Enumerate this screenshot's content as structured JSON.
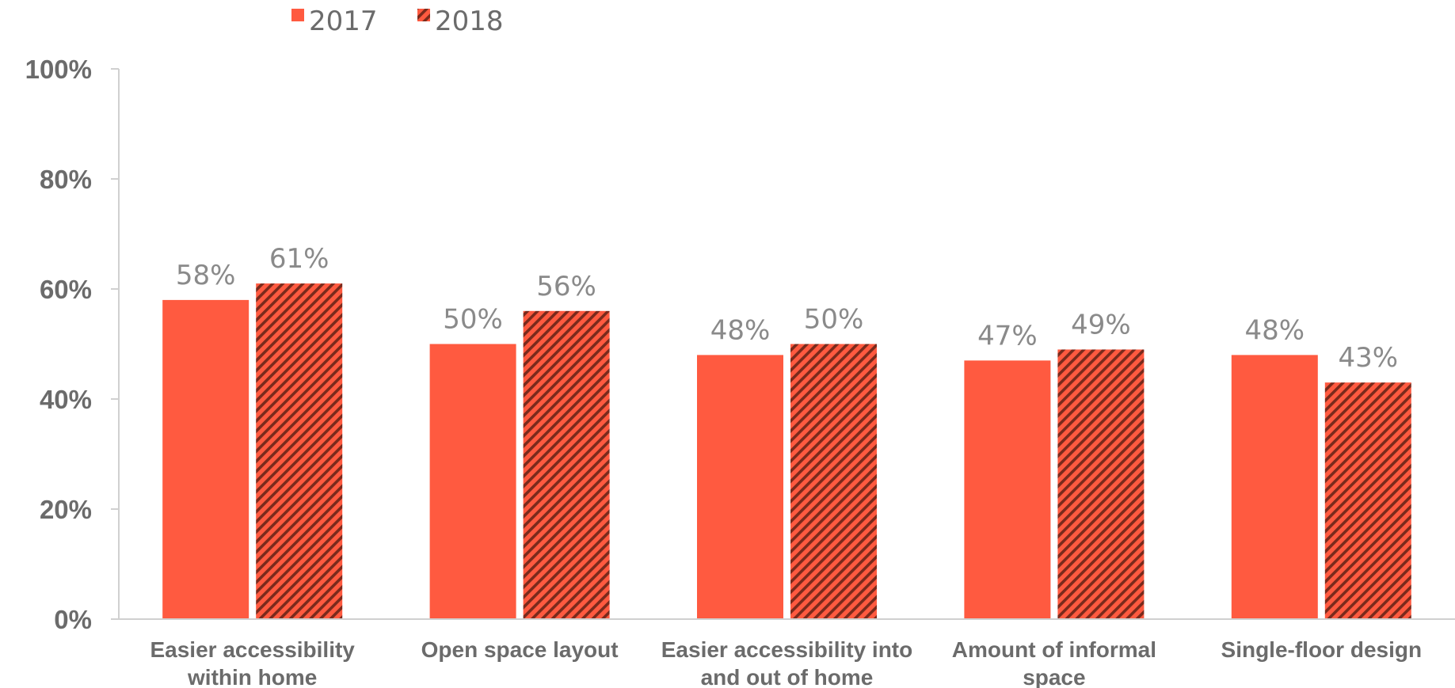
{
  "colors": {
    "series_2017": "#ff5a40",
    "series_2018_base": "#ff5a40",
    "series_2018_hatch": "#7a2a1c",
    "axis": "#d0d0d0",
    "text": "#6b6b6b",
    "label": "#8a8a8a"
  },
  "chart_data": {
    "type": "bar",
    "title": "",
    "xlabel": "",
    "ylabel": "",
    "ylim": [
      0,
      100
    ],
    "yticks": [
      0,
      20,
      40,
      60,
      80,
      100
    ],
    "ytick_labels": [
      "0%",
      "20%",
      "40%",
      "60%",
      "80%",
      "100%"
    ],
    "grid": false,
    "legend_position": "top-left",
    "categories": [
      [
        "Easier accessibility",
        "within home"
      ],
      [
        "Open space layout"
      ],
      [
        "Easier accessibility into",
        "and out of home"
      ],
      [
        "Amount of informal",
        "space"
      ],
      [
        "Single-floor design"
      ]
    ],
    "series": [
      {
        "name": "2017",
        "pattern": "solid",
        "values": [
          58,
          50,
          48,
          47,
          48
        ],
        "labels": [
          "58%",
          "50%",
          "48%",
          "47%",
          "48%"
        ]
      },
      {
        "name": "2018",
        "pattern": "hatched",
        "values": [
          61,
          56,
          50,
          49,
          43
        ],
        "labels": [
          "61%",
          "56%",
          "50%",
          "49%",
          "43%"
        ]
      }
    ]
  }
}
